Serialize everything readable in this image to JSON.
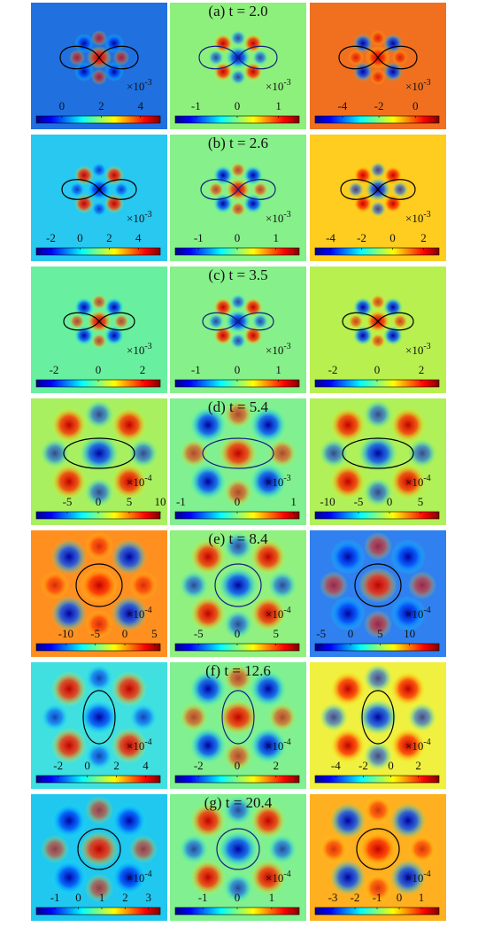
{
  "figure": {
    "rows": [
      {
        "label": "(a) t = 2.0",
        "panels": [
          {
            "background": "#2070e0",
            "multiplier": "×10",
            "exponent": "-3",
            "colorbar": {
              "lim": [
                -1.3,
                5
              ],
              "ticks": [
                0,
                2,
                4
              ]
            }
          },
          {
            "background": "#8ef07c",
            "multiplier": "×10",
            "exponent": "-3",
            "colorbar": {
              "lim": [
                -1.5,
                1.5
              ],
              "ticks": [
                -1,
                0,
                1
              ]
            }
          },
          {
            "background": "#f07020",
            "multiplier": "×10",
            "exponent": "-3",
            "colorbar": {
              "lim": [
                -5.5,
                1.3
              ],
              "ticks": [
                -4,
                -2,
                0
              ]
            }
          }
        ]
      },
      {
        "label": "(b) t = 2.6",
        "panels": [
          {
            "background": "#28c8f0",
            "multiplier": "×10",
            "exponent": "-3",
            "colorbar": {
              "lim": [
                -3,
                5.5
              ],
              "ticks": [
                -2,
                0,
                2,
                4
              ]
            }
          },
          {
            "background": "#86f08a",
            "multiplier": "×10",
            "exponent": "-3",
            "colorbar": {
              "lim": [
                -1.6,
                1.6
              ],
              "ticks": [
                -1,
                0,
                1
              ]
            }
          },
          {
            "background": "#ffcc20",
            "multiplier": "×10",
            "exponent": "-3",
            "colorbar": {
              "lim": [
                -5,
                3
              ],
              "ticks": [
                -4,
                -2,
                0,
                2
              ]
            }
          }
        ]
      },
      {
        "label": "(c) t = 3.5",
        "panels": [
          {
            "background": "#68f0a0",
            "multiplier": "×10",
            "exponent": "-3",
            "colorbar": {
              "lim": [
                -2.8,
                2.8
              ],
              "ticks": [
                -2,
                0,
                2
              ]
            }
          },
          {
            "background": "#86f08a",
            "multiplier": "×10",
            "exponent": "-3",
            "colorbar": {
              "lim": [
                -1.5,
                1.5
              ],
              "ticks": [
                -1,
                0,
                1
              ]
            }
          },
          {
            "background": "#b8f050",
            "multiplier": "×10",
            "exponent": "-3",
            "colorbar": {
              "lim": [
                -2.8,
                2.8
              ],
              "ticks": [
                -2,
                0,
                2
              ]
            }
          }
        ]
      },
      {
        "label": "(d) t = 5.4",
        "panels": [
          {
            "background": "#a8f060",
            "multiplier": "×10",
            "exponent": "-4",
            "colorbar": {
              "lim": [
                -10,
                10
              ],
              "ticks": [
                -5,
                0,
                5,
                10
              ]
            }
          },
          {
            "background": "#80f090",
            "multiplier": "×10",
            "exponent": "-3",
            "colorbar": {
              "lim": [
                -1.1,
                1.1
              ],
              "ticks": [
                -1,
                0,
                1
              ]
            }
          },
          {
            "background": "#b0f058",
            "multiplier": "×10",
            "exponent": "-4",
            "colorbar": {
              "lim": [
                -12,
                8
              ],
              "ticks": [
                -10,
                -5,
                0,
                5
              ]
            }
          }
        ]
      },
      {
        "label": "(e) t = 8.4",
        "panels": [
          {
            "background": "#ff9020",
            "multiplier": "×10",
            "exponent": "-4",
            "colorbar": {
              "lim": [
                -15,
                6
              ],
              "ticks": [
                -10,
                -5,
                0,
                5
              ]
            }
          },
          {
            "background": "#90f080",
            "multiplier": "×10",
            "exponent": "-4",
            "colorbar": {
              "lim": [
                -8,
                8
              ],
              "ticks": [
                -5,
                0,
                5
              ]
            }
          },
          {
            "background": "#3080f0",
            "multiplier": "×10",
            "exponent": "-4",
            "colorbar": {
              "lim": [
                -6,
                15
              ],
              "ticks": [
                -5,
                0,
                5,
                10
              ]
            }
          }
        ]
      },
      {
        "label": "(f) t = 12.6",
        "panels": [
          {
            "background": "#40e0e0",
            "multiplier": "×10",
            "exponent": "-4",
            "colorbar": {
              "lim": [
                -3.5,
                5
              ],
              "ticks": [
                -2,
                0,
                2,
                4
              ]
            }
          },
          {
            "background": "#80f090",
            "multiplier": "×10",
            "exponent": "-4",
            "colorbar": {
              "lim": [
                -3.2,
                3.2
              ],
              "ticks": [
                -2,
                0,
                2
              ]
            }
          },
          {
            "background": "#f0f040",
            "multiplier": "×10",
            "exponent": "-4",
            "colorbar": {
              "lim": [
                -5.5,
                3.5
              ],
              "ticks": [
                -4,
                -2,
                0,
                2
              ]
            }
          }
        ]
      },
      {
        "label": "(g) t = 20.4",
        "panels": [
          {
            "background": "#20c8f0",
            "multiplier": "×10",
            "exponent": "-4",
            "colorbar": {
              "lim": [
                -1.8,
                3.5
              ],
              "ticks": [
                -1,
                0,
                1,
                2,
                3
              ]
            }
          },
          {
            "background": "#80f090",
            "multiplier": "×10",
            "exponent": "-4",
            "colorbar": {
              "lim": [
                -1.8,
                1.8
              ],
              "ticks": [
                -1,
                0,
                1
              ]
            }
          },
          {
            "background": "#ffb020",
            "multiplier": "×10",
            "exponent": "-4",
            "colorbar": {
              "lim": [
                -3.8,
                1.8
              ],
              "ticks": [
                -3,
                -2,
                -1,
                0,
                1
              ]
            }
          }
        ]
      }
    ]
  }
}
